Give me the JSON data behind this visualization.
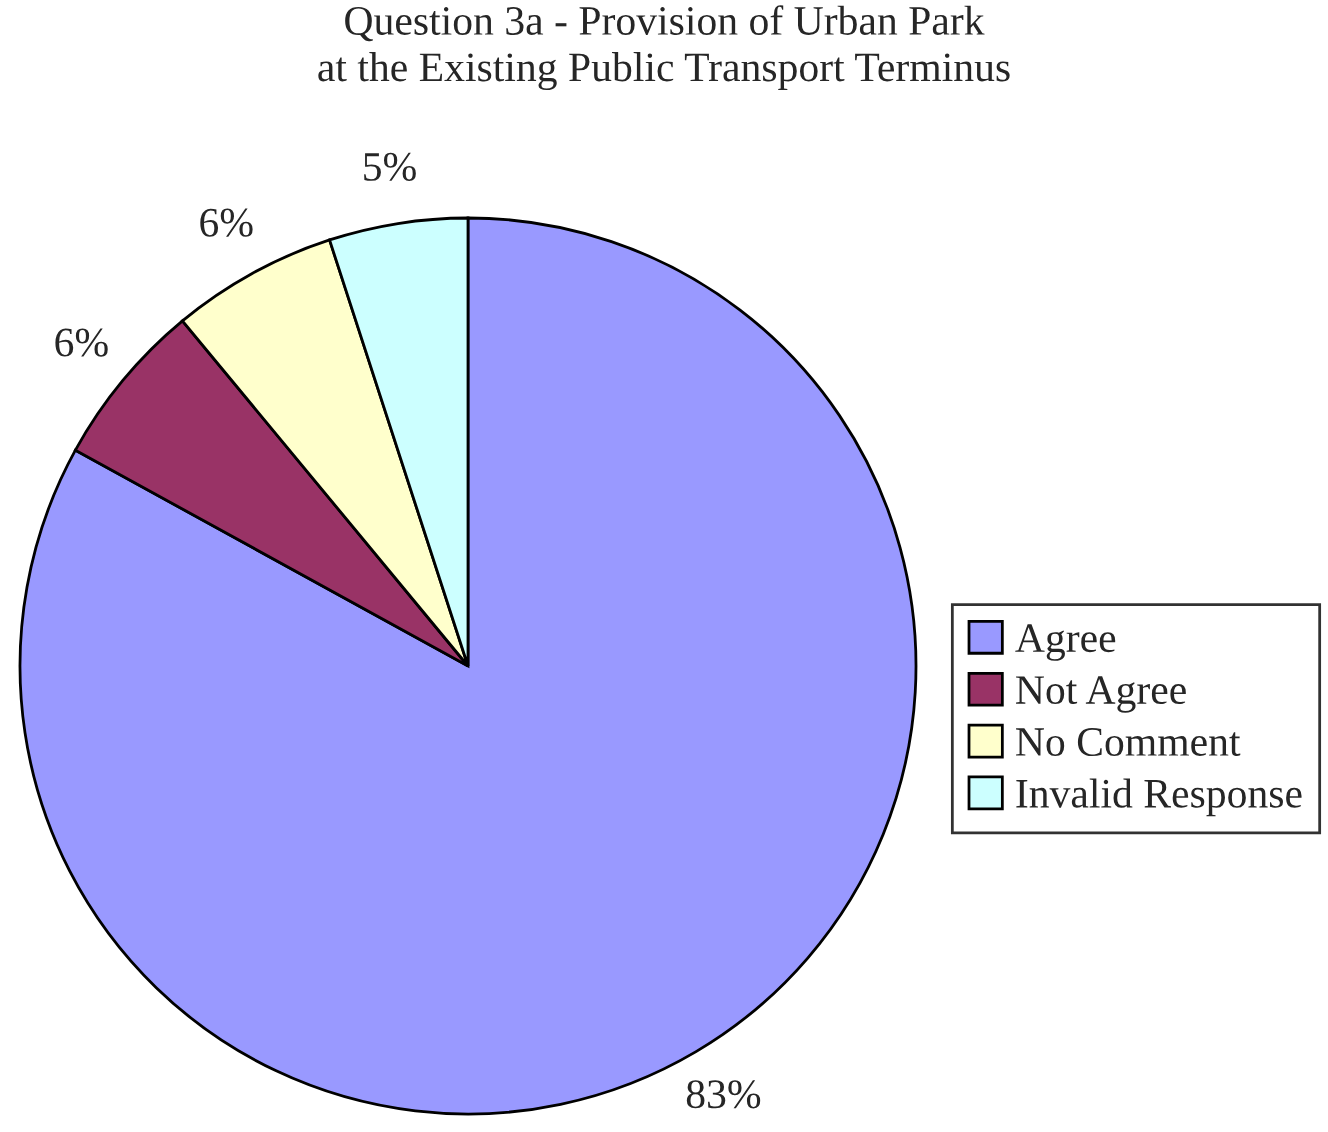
{
  "chart_data": {
    "type": "pie",
    "title": "Question 3a - Provision of Urban Park\nat the Existing Public Transport Terminus",
    "categories": [
      "Agree",
      "Not Agree",
      "No Comment",
      "Invalid Response"
    ],
    "values": [
      83,
      6,
      6,
      5
    ],
    "colors": [
      "#9999ff",
      "#993366",
      "#ffffcc",
      "#ccffff"
    ],
    "value_labels": [
      "83%",
      "6%",
      "6%",
      "5%"
    ],
    "legend": "right"
  }
}
